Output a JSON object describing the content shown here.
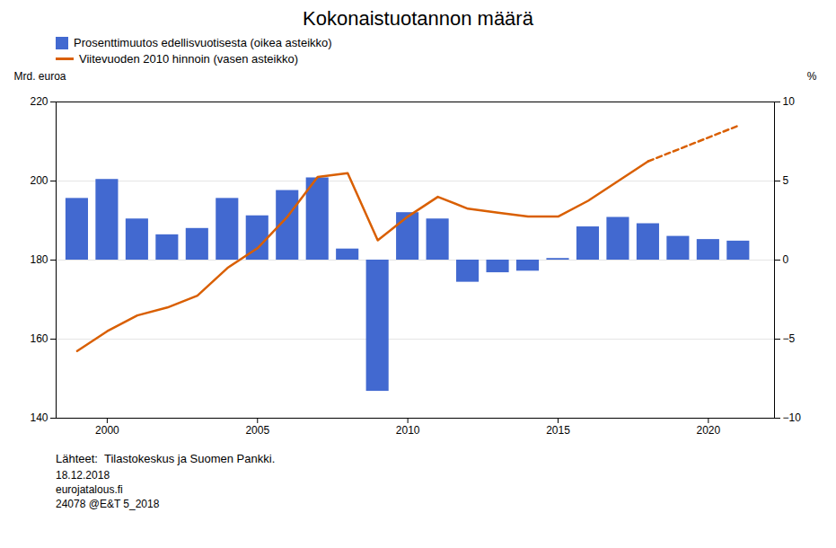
{
  "chart_data": {
    "type": "bar",
    "title": "Kokonaistuotannon määrä",
    "ylabel": "Mrd. euroa",
    "y2label": "%",
    "annotations": [
      "Lähteet:  Tilastokeskus ja Suomen Pankki.",
      "18.12.2018",
      "eurojatalous.fi",
      "24078 @E&T 5_2018"
    ],
    "x": [
      1999,
      2000,
      2001,
      2002,
      2003,
      2004,
      2005,
      2006,
      2007,
      2008,
      2009,
      2010,
      2011,
      2012,
      2013,
      2014,
      2015,
      2016,
      2017,
      2018,
      2019,
      2020,
      2021
    ],
    "series": [
      {
        "name": "Prosenttimuutos edellisvuotisesta (oikea asteikko)",
        "type": "bar",
        "axis": "y2",
        "color": "#4269d0",
        "values": [
          3.9,
          5.1,
          2.6,
          1.6,
          2.0,
          3.9,
          2.8,
          4.4,
          5.2,
          0.7,
          -8.3,
          3.0,
          2.6,
          -1.4,
          -0.8,
          -0.7,
          0.1,
          2.1,
          2.7,
          2.3,
          1.5,
          1.3,
          1.2
        ]
      },
      {
        "name": "Viitevuoden 2010 hinnoin (vasen asteikko)",
        "type": "line",
        "color": "#d95f02",
        "line_style": "solid",
        "values": [
          157,
          162,
          166,
          168,
          171,
          178,
          183,
          191,
          201,
          202,
          185,
          191,
          196,
          193,
          192,
          191,
          191,
          195,
          200,
          205,
          null,
          null,
          null
        ]
      },
      {
        "type": "line",
        "color": "#d95f02",
        "line_style": "dashed",
        "values": [
          null,
          null,
          null,
          null,
          null,
          null,
          null,
          null,
          null,
          null,
          null,
          null,
          null,
          null,
          null,
          null,
          null,
          null,
          null,
          205,
          208,
          211,
          214
        ]
      }
    ],
    "xlim": [
      1998.3,
      2022.2
    ],
    "xticks": [
      2000,
      2005,
      2010,
      2015,
      2020
    ],
    "ylim": [
      140,
      220
    ],
    "yticks": [
      140,
      160,
      180,
      200,
      220
    ],
    "y2lim": [
      -10,
      10
    ],
    "y2ticks": [
      -10,
      -5,
      0,
      5,
      10
    ],
    "grid": true,
    "legend": "top"
  }
}
